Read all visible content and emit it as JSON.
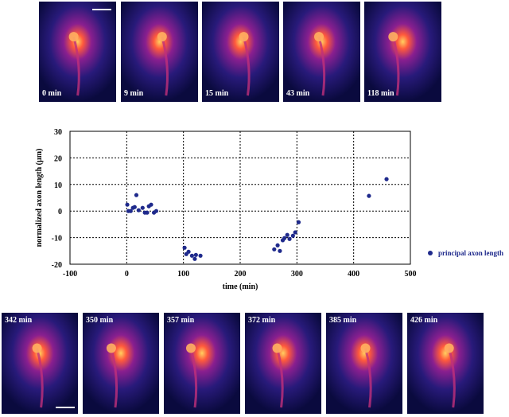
{
  "top_panels": [
    "0 min",
    "9 min",
    "15 min",
    "43 min",
    "118 min"
  ],
  "bottom_panels": [
    "342 min",
    "350 min",
    "357 min",
    "372 min",
    "385 min",
    "426 min"
  ],
  "chart_data": {
    "type": "scatter",
    "x_label": "time (min)",
    "y_label": "normalized axon length (µm)",
    "series": [
      {
        "name": "principal axon length",
        "color": "#1f2a8c",
        "x": [
          1,
          3,
          7,
          11,
          14,
          17,
          21,
          28,
          32,
          36,
          39,
          43,
          48,
          52,
          102,
          105,
          109,
          115,
          120,
          122,
          130,
          260,
          266,
          270,
          275,
          278,
          283,
          287,
          293,
          297,
          303,
          427,
          458
        ],
        "values": [
          2.4,
          0,
          0,
          1.2,
          1.5,
          6,
          0.3,
          1.2,
          -0.6,
          -0.6,
          1.8,
          2.4,
          -0.6,
          0,
          -13.8,
          -16.2,
          -15.3,
          -16.8,
          -18,
          -16.5,
          -16.8,
          -14.4,
          -12.9,
          -15,
          -11,
          -10.2,
          -9,
          -10.5,
          -9.3,
          -8,
          -4.2,
          5.7,
          12
        ]
      }
    ],
    "xlim": [
      -100,
      500
    ],
    "xticks": [
      -100,
      0,
      100,
      200,
      300,
      400,
      500
    ],
    "ylim": [
      -20,
      30
    ],
    "yticks": [
      -20,
      -10,
      0,
      10,
      20,
      30
    ],
    "grid": true,
    "legend": "right"
  }
}
